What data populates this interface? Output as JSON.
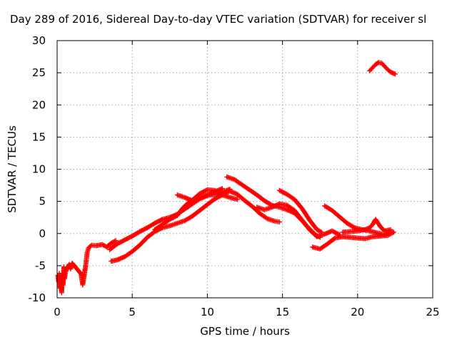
{
  "chart_data": {
    "type": "scatter",
    "title": "Day 289 of 2016, Sidereal Day-to-day VTEC variation (SDTVAR) for receiver sl",
    "xlabel": "GPS time / hours",
    "ylabel": "SDTVAR / TECUs",
    "xlim": [
      0,
      25
    ],
    "ylim": [
      -10,
      30
    ],
    "xticks": [
      0,
      5,
      10,
      15,
      20,
      25
    ],
    "yticks": [
      -10,
      -5,
      0,
      5,
      10,
      15,
      20,
      25,
      30
    ],
    "grid": true,
    "marker": "+",
    "color": "#ff0000",
    "series": [
      {
        "values": [
          [
            0.05,
            -6.5
          ],
          [
            0.1,
            -7.5
          ],
          [
            0.15,
            -6.2
          ],
          [
            0.2,
            -8.5
          ],
          [
            0.25,
            -7.8
          ],
          [
            0.3,
            -9.2
          ],
          [
            0.35,
            -6.5
          ],
          [
            0.4,
            -8.0
          ],
          [
            0.45,
            -5.2
          ],
          [
            0.5,
            -7.0
          ],
          [
            0.55,
            -6.0
          ],
          [
            0.8,
            -4.8
          ],
          [
            0.9,
            -5.5
          ],
          [
            1.0,
            -4.6
          ],
          [
            1.6,
            -6.3
          ],
          [
            1.65,
            -7.2
          ],
          [
            1.7,
            -8.0
          ],
          [
            1.9,
            -5.0
          ],
          [
            1.95,
            -4.0
          ],
          [
            2.0,
            -3.0
          ],
          [
            2.1,
            -2.2
          ],
          [
            2.3,
            -1.8
          ],
          [
            2.6,
            -1.9
          ],
          [
            3.0,
            -1.7
          ],
          [
            3.3,
            -2.1
          ],
          [
            3.6,
            -1.5
          ],
          [
            3.9,
            -1.1
          ]
        ]
      },
      {
        "values": [
          [
            3.5,
            -2.5
          ],
          [
            4.0,
            -1.6
          ],
          [
            4.5,
            -1.0
          ],
          [
            5.0,
            -0.4
          ],
          [
            5.5,
            0.3
          ],
          [
            6.0,
            0.9
          ],
          [
            6.5,
            1.6
          ],
          [
            7.0,
            2.2
          ],
          [
            7.5,
            2.5
          ],
          [
            8.0,
            3.0
          ],
          [
            8.5,
            3.8
          ],
          [
            9.0,
            4.6
          ],
          [
            9.5,
            5.4
          ],
          [
            10.0,
            5.9
          ],
          [
            10.5,
            6.1
          ],
          [
            11.0,
            6.4
          ],
          [
            11.5,
            6.9
          ]
        ]
      },
      {
        "values": [
          [
            3.6,
            -4.3
          ],
          [
            4.0,
            -4.1
          ],
          [
            4.5,
            -3.6
          ],
          [
            5.0,
            -2.8
          ],
          [
            5.5,
            -1.8
          ],
          [
            6.0,
            -0.6
          ],
          [
            6.5,
            0.3
          ],
          [
            7.0,
            0.9
          ],
          [
            7.5,
            1.2
          ],
          [
            8.0,
            1.6
          ],
          [
            8.5,
            2.0
          ],
          [
            9.0,
            2.7
          ],
          [
            9.5,
            3.6
          ],
          [
            10.0,
            4.5
          ],
          [
            10.5,
            5.4
          ],
          [
            11.0,
            6.0
          ],
          [
            11.5,
            6.6
          ],
          [
            12.0,
            6.1
          ],
          [
            12.5,
            5.1
          ],
          [
            13.0,
            4.2
          ],
          [
            13.5,
            3.1
          ],
          [
            14.0,
            2.3
          ],
          [
            14.5,
            1.9
          ],
          [
            14.8,
            1.8
          ]
        ]
      },
      {
        "values": [
          [
            6.5,
            0.6
          ],
          [
            7.0,
            1.4
          ],
          [
            7.5,
            2.2
          ],
          [
            8.0,
            2.8
          ],
          [
            8.3,
            3.8
          ],
          [
            8.5,
            4.3
          ],
          [
            9.0,
            5.2
          ],
          [
            9.5,
            6.2
          ],
          [
            10.0,
            6.8
          ],
          [
            10.5,
            6.7
          ],
          [
            11.0,
            6.0
          ],
          [
            11.5,
            5.6
          ],
          [
            12.0,
            5.3
          ]
        ]
      },
      {
        "values": [
          [
            8.0,
            6.0
          ],
          [
            8.5,
            5.6
          ],
          [
            9.0,
            5.1
          ],
          [
            9.5,
            5.6
          ],
          [
            10.0,
            6.0
          ],
          [
            10.5,
            6.5
          ],
          [
            11.0,
            7.0
          ]
        ]
      },
      {
        "values": [
          [
            11.3,
            8.8
          ],
          [
            11.8,
            8.4
          ],
          [
            12.3,
            7.6
          ],
          [
            12.8,
            6.8
          ],
          [
            13.3,
            6.0
          ],
          [
            13.8,
            5.1
          ],
          [
            14.3,
            4.4
          ],
          [
            14.8,
            4.1
          ],
          [
            15.3,
            3.7
          ],
          [
            15.8,
            3.2
          ],
          [
            16.3,
            2.0
          ],
          [
            16.8,
            0.7
          ],
          [
            17.2,
            -0.2
          ],
          [
            17.5,
            -0.6
          ]
        ]
      },
      {
        "values": [
          [
            13.3,
            4.1
          ],
          [
            13.8,
            3.7
          ],
          [
            14.3,
            4.1
          ],
          [
            14.8,
            4.6
          ],
          [
            15.3,
            4.4
          ],
          [
            15.8,
            3.6
          ],
          [
            16.3,
            2.1
          ],
          [
            16.8,
            0.6
          ],
          [
            17.3,
            -0.5
          ],
          [
            17.8,
            -0.1
          ],
          [
            18.3,
            0.4
          ],
          [
            18.8,
            -0.2
          ]
        ]
      },
      {
        "values": [
          [
            14.8,
            6.7
          ],
          [
            15.3,
            6.1
          ],
          [
            15.8,
            5.3
          ],
          [
            16.3,
            3.9
          ],
          [
            16.8,
            2.1
          ],
          [
            17.3,
            0.6
          ],
          [
            17.6,
            0.2
          ]
        ]
      },
      {
        "values": [
          [
            17.0,
            -2.1
          ],
          [
            17.5,
            -2.4
          ],
          [
            18.0,
            -1.6
          ],
          [
            18.5,
            -0.7
          ],
          [
            19.0,
            -0.5
          ],
          [
            19.5,
            -0.6
          ],
          [
            20.0,
            -0.7
          ],
          [
            20.5,
            -0.8
          ],
          [
            21.0,
            -0.5
          ],
          [
            21.5,
            -0.4
          ],
          [
            22.0,
            -0.3
          ],
          [
            22.4,
            0.2
          ]
        ]
      },
      {
        "values": [
          [
            17.8,
            4.3
          ],
          [
            18.3,
            3.6
          ],
          [
            18.8,
            2.6
          ],
          [
            19.3,
            1.6
          ],
          [
            19.8,
            0.9
          ],
          [
            20.3,
            0.6
          ],
          [
            20.8,
            0.4
          ],
          [
            21.3,
            0.1
          ],
          [
            21.8,
            -0.2
          ],
          [
            22.3,
            0.3
          ]
        ]
      },
      {
        "values": [
          [
            19.0,
            0.2
          ],
          [
            19.5,
            0.3
          ],
          [
            20.0,
            0.4
          ],
          [
            20.5,
            0.6
          ],
          [
            20.8,
            0.9
          ],
          [
            21.0,
            1.4
          ],
          [
            21.2,
            2.2
          ],
          [
            21.5,
            1.1
          ],
          [
            21.8,
            0.4
          ],
          [
            22.2,
            0.6
          ]
        ]
      },
      {
        "values": [
          [
            20.8,
            25.3
          ],
          [
            21.0,
            25.8
          ],
          [
            21.2,
            26.3
          ],
          [
            21.4,
            26.6
          ],
          [
            21.6,
            26.5
          ],
          [
            21.8,
            26.0
          ],
          [
            22.0,
            25.5
          ],
          [
            22.2,
            25.1
          ],
          [
            22.5,
            24.8
          ]
        ]
      }
    ]
  }
}
